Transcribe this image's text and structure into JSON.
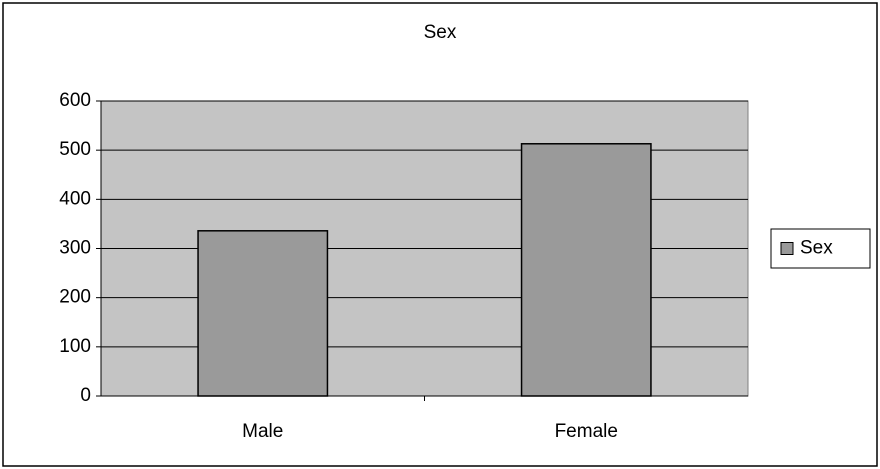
{
  "chart_data": {
    "type": "bar",
    "title": "Sex",
    "categories": [
      "Male",
      "Female"
    ],
    "series": [
      {
        "name": "Sex",
        "color": "#9a9a9a",
        "values": [
          336,
          513
        ]
      }
    ],
    "ylim": [
      0,
      600
    ],
    "yticks": [
      0,
      100,
      200,
      300,
      400,
      500,
      600
    ],
    "grid": true,
    "legend": "right"
  }
}
